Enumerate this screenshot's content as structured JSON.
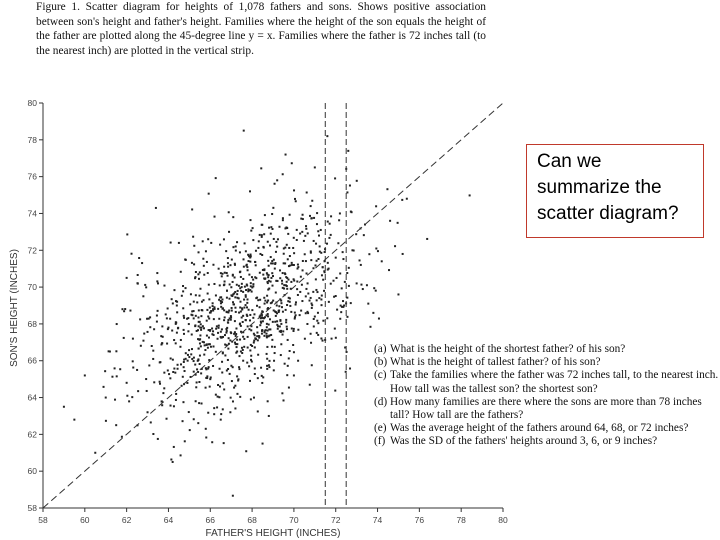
{
  "caption": {
    "figure_label": "Figure 1.",
    "text": "Scatter diagram for heights of 1,078 fathers and sons. Shows positive association between son's height and father's height. Families where the height of the son equals the height of the father are plotted along the 45-degree line y = x. Families where the father is 72 inches tall (to the nearest inch) are plotted in the vertical strip."
  },
  "callout": {
    "text": "Can we summarize the scatter diagram?"
  },
  "questions": [
    {
      "tag": "(a)",
      "text": "What is the height of the shortest father? of his son?"
    },
    {
      "tag": "(b)",
      "text": "What is the height of tallest father? of his son?"
    },
    {
      "tag": "(c)",
      "text": "Take the families where the father was 72 inches tall, to the nearest inch. How tall was the tallest son? the shortest son?"
    },
    {
      "tag": "(d)",
      "text": "How many families are there where the sons are more than 78 inches tall? How tall are the fathers?"
    },
    {
      "tag": "(e)",
      "text": "Was the average height of the fathers around 64, 68, or 72 inches?"
    },
    {
      "tag": "(f)",
      "text": "Was the SD of the fathers' heights around 3, 6, or 9 inches?"
    }
  ],
  "chart_data": {
    "type": "scatter",
    "title": "",
    "xlabel": "FATHER'S HEIGHT (INCHES)",
    "ylabel": "SON'S HEIGHT (INCHES)",
    "xlim": [
      58,
      80
    ],
    "ylim": [
      58,
      80
    ],
    "x_ticks": [
      58,
      60,
      62,
      64,
      66,
      68,
      70,
      72,
      74,
      76,
      78,
      80
    ],
    "y_ticks": [
      58,
      60,
      62,
      64,
      66,
      68,
      70,
      72,
      74,
      76,
      78,
      80
    ],
    "reference_line": "y = x",
    "vertical_strip": [
      71.5,
      72.5
    ],
    "grid": false,
    "n_points": 1078,
    "points_sample": [
      [
        59.0,
        63.5
      ],
      [
        59.5,
        62.8
      ],
      [
        60.0,
        65.2
      ],
      [
        60.5,
        61.0
      ],
      [
        61.0,
        64.0
      ],
      [
        61.2,
        66.5
      ],
      [
        61.5,
        62.5
      ],
      [
        61.8,
        68.8
      ],
      [
        62.0,
        64.8
      ],
      [
        62.3,
        67.2
      ],
      [
        62.5,
        65.5
      ],
      [
        62.8,
        69.5
      ],
      [
        63.0,
        63.2
      ],
      [
        63.2,
        66.8
      ],
      [
        63.4,
        74.3
      ],
      [
        63.5,
        70.2
      ],
      [
        63.8,
        64.5
      ],
      [
        64.0,
        67.8
      ],
      [
        64.2,
        60.5
      ],
      [
        64.4,
        69.0
      ],
      [
        64.6,
        65.8
      ],
      [
        64.8,
        71.5
      ],
      [
        65.0,
        66.2
      ],
      [
        65.1,
        68.5
      ],
      [
        65.3,
        63.8
      ],
      [
        65.5,
        70.8
      ],
      [
        65.7,
        67.0
      ],
      [
        65.9,
        72.6
      ],
      [
        66.0,
        65.0
      ],
      [
        66.2,
        68.9
      ],
      [
        66.4,
        71.0
      ],
      [
        66.6,
        66.4
      ],
      [
        66.8,
        69.8
      ],
      [
        67.0,
        67.5
      ],
      [
        67.1,
        73.8
      ],
      [
        67.3,
        64.2
      ],
      [
        67.5,
        70.0
      ],
      [
        67.7,
        68.2
      ],
      [
        67.9,
        75.2
      ],
      [
        68.0,
        66.8
      ],
      [
        68.2,
        69.4
      ],
      [
        68.4,
        71.8
      ],
      [
        68.6,
        67.6
      ],
      [
        68.8,
        63.0
      ],
      [
        69.0,
        70.6
      ],
      [
        69.2,
        72.2
      ],
      [
        69.4,
        68.0
      ],
      [
        69.6,
        77.2
      ],
      [
        69.8,
        69.2
      ],
      [
        70.0,
        71.2
      ],
      [
        70.2,
        66.0
      ],
      [
        70.4,
        73.0
      ],
      [
        70.6,
        69.9
      ],
      [
        70.8,
        74.4
      ],
      [
        71.0,
        68.4
      ],
      [
        71.2,
        72.8
      ],
      [
        71.4,
        70.4
      ],
      [
        71.6,
        78.2
      ],
      [
        71.8,
        67.2
      ],
      [
        72.0,
        71.6
      ],
      [
        72.2,
        74.0
      ],
      [
        72.4,
        69.0
      ],
      [
        72.6,
        77.4
      ],
      [
        72.8,
        72.0
      ],
      [
        73.0,
        70.2
      ],
      [
        73.4,
        73.4
      ],
      [
        73.8,
        68.6
      ],
      [
        74.2,
        71.4
      ],
      [
        74.6,
        73.6
      ],
      [
        75.0,
        69.6
      ],
      [
        75.2,
        71.8
      ],
      [
        75.4,
        74.8
      ],
      [
        67.6,
        78.5
      ],
      [
        68.5,
        61.5
      ],
      [
        70.0,
        65.2
      ],
      [
        66.5,
        62.8
      ],
      [
        64.5,
        72.4
      ],
      [
        62.0,
        70.5
      ],
      [
        69.2,
        75.8
      ],
      [
        71.0,
        76.5
      ]
    ]
  }
}
